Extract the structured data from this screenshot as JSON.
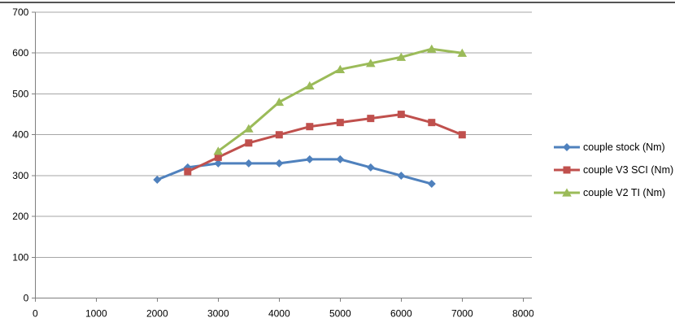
{
  "chart_data": {
    "type": "line",
    "title": "",
    "xlabel": "",
    "ylabel": "",
    "xlim": [
      0,
      8000
    ],
    "ylim": [
      0,
      700
    ],
    "x_ticks": [
      0,
      1000,
      2000,
      3000,
      4000,
      5000,
      6000,
      7000,
      8000
    ],
    "y_ticks": [
      0,
      100,
      200,
      300,
      400,
      500,
      600,
      700
    ],
    "grid": "horizontal",
    "legend_position": "right",
    "colors": {
      "background": "#FFFFFF",
      "gridline": "#A6A6A6",
      "axis": "#7F7F7F",
      "tick_label": "#000000",
      "top_border": "#555555"
    },
    "series": [
      {
        "name": "couple stock (Nm)",
        "color": "#4F81BD",
        "marker": "diamond",
        "x": [
          2000,
          2500,
          3000,
          3500,
          4000,
          4500,
          5000,
          5500,
          6000,
          6500
        ],
        "values": [
          290,
          320,
          330,
          330,
          330,
          340,
          340,
          320,
          300,
          280
        ]
      },
      {
        "name": "couple V3 SCI (Nm)",
        "color": "#C0504D",
        "marker": "square",
        "x": [
          2500,
          3000,
          3500,
          4000,
          4500,
          5000,
          5500,
          6000,
          6500,
          7000
        ],
        "values": [
          310,
          345,
          380,
          400,
          420,
          430,
          440,
          450,
          430,
          400
        ]
      },
      {
        "name": "couple V2 TI (Nm)",
        "color": "#9BBB59",
        "marker": "triangle",
        "x": [
          3000,
          3500,
          4000,
          4500,
          5000,
          5500,
          6000,
          6500,
          7000
        ],
        "values": [
          360,
          415,
          480,
          520,
          560,
          575,
          590,
          610,
          600
        ]
      }
    ]
  }
}
